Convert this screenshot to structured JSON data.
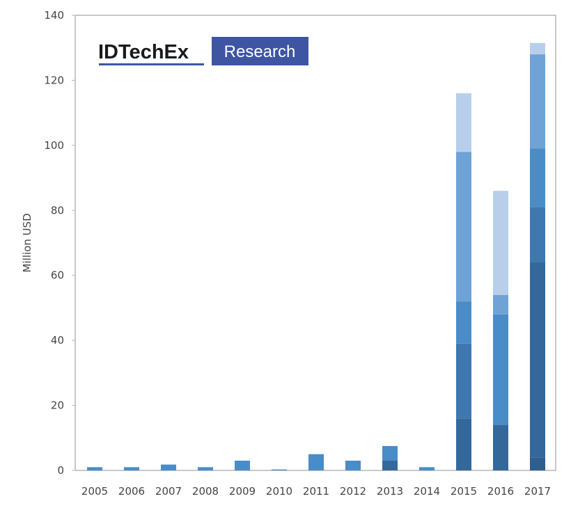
{
  "logo": {
    "brand": "IDTechEx",
    "badge": "Research",
    "brand_color": "#1a1a1a",
    "badge_color": "#3d55a3"
  },
  "chart_data": {
    "type": "bar",
    "stacked": true,
    "ylabel": "Million USD",
    "xlabel": "",
    "ylim": [
      0,
      140
    ],
    "yticks": [
      0,
      20,
      40,
      60,
      80,
      100,
      120,
      140
    ],
    "grid": false,
    "categories": [
      "2005",
      "2006",
      "2007",
      "2008",
      "2009",
      "2010",
      "2011",
      "2012",
      "2013",
      "2014",
      "2015",
      "2016",
      "2017"
    ],
    "series": [
      {
        "color": "#2f5f8f",
        "values": [
          0,
          0,
          0,
          0,
          0,
          0,
          0,
          0,
          0,
          0,
          0,
          0,
          4
        ]
      },
      {
        "color": "#35689a",
        "values": [
          0,
          0,
          0,
          0,
          0,
          0,
          0,
          0,
          3,
          0,
          16,
          14,
          60
        ]
      },
      {
        "color": "#3f78b0",
        "values": [
          0,
          0,
          0,
          0,
          0,
          0,
          0,
          0,
          0,
          0,
          23,
          0,
          17
        ]
      },
      {
        "color": "#4a8cc8",
        "values": [
          1,
          1,
          1.8,
          1,
          3,
          0.3,
          5,
          3,
          4.5,
          1,
          13,
          34,
          18
        ]
      },
      {
        "color": "#6fa3d6",
        "values": [
          0,
          0,
          0,
          0,
          0,
          0,
          0,
          0,
          0,
          0,
          46,
          6,
          29
        ]
      },
      {
        "color": "#b7cfea",
        "values": [
          0,
          0,
          0,
          0,
          0,
          0,
          0,
          0,
          0,
          0,
          18,
          32,
          3.5
        ]
      }
    ]
  }
}
